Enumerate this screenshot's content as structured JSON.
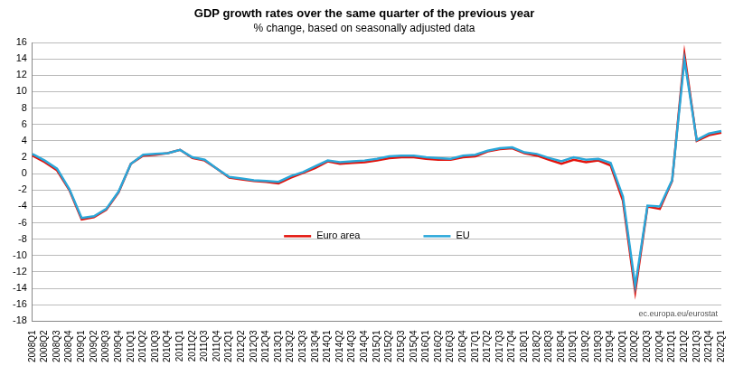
{
  "chart_data": {
    "type": "line",
    "title": "GDP growth rates over the same quarter of the previous year",
    "subtitle": "% change, based on seasonally adjusted data",
    "annotations": [
      "ec.europa.eu/eurostat"
    ],
    "categories": [
      "2008Q1",
      "2008Q2",
      "2008Q3",
      "2008Q4",
      "2009Q1",
      "2009Q2",
      "2009Q3",
      "2009Q4",
      "2010Q1",
      "2010Q2",
      "2010Q3",
      "2010Q4",
      "2011Q1",
      "2011Q2",
      "2011Q3",
      "2011Q4",
      "2012Q1",
      "2012Q2",
      "2012Q3",
      "2012Q4",
      "2013Q1",
      "2013Q2",
      "2013Q3",
      "2013Q4",
      "2014Q1",
      "2014Q2",
      "2014Q3",
      "2014Q4",
      "2015Q1",
      "2015Q2",
      "2015Q3",
      "2015Q4",
      "2016Q1",
      "2016Q2",
      "2016Q3",
      "2016Q4",
      "2017Q1",
      "2017Q2",
      "2017Q3",
      "2017Q4",
      "2018Q1",
      "2018Q2",
      "2018Q3",
      "2018Q4",
      "2019Q1",
      "2019Q2",
      "2019Q3",
      "2019Q4",
      "2020Q1",
      "2020Q2",
      "2020Q3",
      "2020Q4",
      "2021Q1",
      "2021Q2",
      "2021Q3",
      "2021Q4",
      "2022Q1"
    ],
    "series": [
      {
        "name": "Euro area",
        "color": "#e3120b",
        "values": [
          2.2,
          1.4,
          0.4,
          -2.0,
          -5.6,
          -5.3,
          -4.4,
          -2.3,
          1.2,
          2.2,
          2.3,
          2.5,
          2.9,
          1.9,
          1.6,
          0.6,
          -0.5,
          -0.7,
          -0.9,
          -1.0,
          -1.2,
          -0.5,
          0.1,
          0.7,
          1.5,
          1.2,
          1.3,
          1.4,
          1.6,
          1.9,
          2.0,
          2.0,
          1.8,
          1.7,
          1.7,
          2.0,
          2.1,
          2.7,
          3.0,
          3.1,
          2.5,
          2.2,
          1.7,
          1.2,
          1.7,
          1.4,
          1.6,
          1.0,
          -3.3,
          -14.4,
          -4.0,
          -4.3,
          -0.9,
          14.6,
          4.0,
          4.7,
          5.0
        ]
      },
      {
        "name": "EU",
        "color": "#2aa7d9",
        "values": [
          2.4,
          1.6,
          0.6,
          -1.9,
          -5.4,
          -5.2,
          -4.3,
          -2.2,
          1.2,
          2.3,
          2.4,
          2.5,
          2.9,
          2.0,
          1.7,
          0.6,
          -0.4,
          -0.6,
          -0.8,
          -0.9,
          -1.0,
          -0.3,
          0.2,
          0.9,
          1.6,
          1.4,
          1.5,
          1.6,
          1.8,
          2.1,
          2.2,
          2.2,
          2.0,
          1.9,
          1.8,
          2.2,
          2.3,
          2.8,
          3.1,
          3.2,
          2.6,
          2.4,
          1.9,
          1.5,
          2.0,
          1.7,
          1.8,
          1.3,
          -2.8,
          -13.7,
          -3.9,
          -4.0,
          -0.8,
          13.9,
          4.1,
          4.9,
          5.2
        ]
      }
    ],
    "ylim": [
      -18,
      16
    ],
    "yticks": [
      -18,
      -16,
      -14,
      -12,
      -10,
      -8,
      -6,
      -4,
      -2,
      0,
      2,
      4,
      6,
      8,
      10,
      12,
      14,
      16
    ],
    "grid": true,
    "legend": "center"
  }
}
